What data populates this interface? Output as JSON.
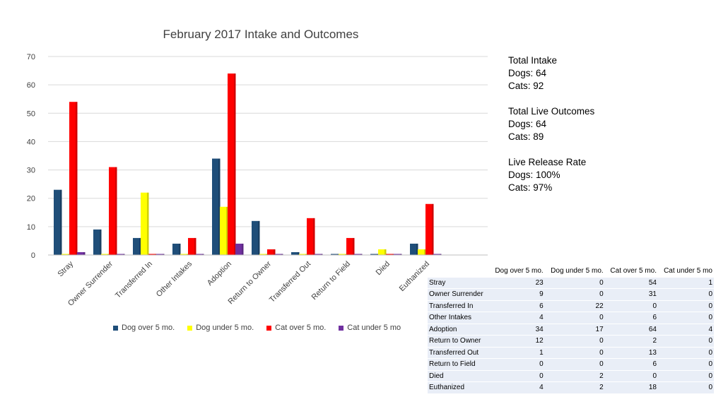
{
  "chart_data": {
    "type": "bar",
    "title": "February 2017 Intake and Outcomes",
    "categories": [
      "Stray",
      "Owner Surrender",
      "Transferred In",
      "Other Intakes",
      "Adoption",
      "Return to Owner",
      "Transferred Out",
      "Return to Field",
      "Died",
      "Euthanized"
    ],
    "series": [
      {
        "name": "Dog over 5 mo.",
        "color": "#1f4e79",
        "values": [
          23,
          9,
          6,
          4,
          34,
          12,
          1,
          0,
          0,
          4
        ]
      },
      {
        "name": "Dog under 5 mo.",
        "color": "#ffff00",
        "values": [
          0,
          0,
          22,
          0,
          17,
          0,
          0,
          0,
          2,
          2
        ]
      },
      {
        "name": "Cat over 5 mo.",
        "color": "#ff0000",
        "values": [
          54,
          31,
          0,
          6,
          64,
          2,
          13,
          6,
          0,
          18
        ]
      },
      {
        "name": "Cat under 5 mo",
        "color": "#7030a0",
        "values": [
          1,
          0,
          0,
          0,
          4,
          0,
          0,
          0,
          0,
          0
        ]
      }
    ],
    "ylim": [
      0,
      70
    ],
    "yticks": [
      0,
      10,
      20,
      30,
      40,
      50,
      60,
      70
    ],
    "grid": true,
    "legend": "bottom"
  },
  "stats": [
    {
      "heading": "Total Intake",
      "lines": [
        "Dogs: 64",
        "Cats: 92"
      ]
    },
    {
      "heading": "Total Live Outcomes",
      "lines": [
        "Dogs: 64",
        "Cats: 89"
      ]
    },
    {
      "heading": "Live Release Rate",
      "lines": [
        "Dogs: 100%",
        "Cats: 97%"
      ]
    }
  ],
  "table": {
    "headers": [
      "",
      "Dog over 5 mo.",
      "Dog under 5 mo.",
      "Cat over 5 mo.",
      "Cat under 5 mo"
    ],
    "rows": [
      [
        "Stray",
        "23",
        "0",
        "54",
        "1"
      ],
      [
        "Owner Surrender",
        "9",
        "0",
        "31",
        "0"
      ],
      [
        "Transferred In",
        "6",
        "22",
        "0",
        "0"
      ],
      [
        "Other Intakes",
        "4",
        "0",
        "6",
        "0"
      ],
      [
        "Adoption",
        "34",
        "17",
        "64",
        "4"
      ],
      [
        "Return to Owner",
        "12",
        "0",
        "2",
        "0"
      ],
      [
        "Transferred Out",
        "1",
        "0",
        "13",
        "0"
      ],
      [
        "Return to Field",
        "0",
        "0",
        "6",
        "0"
      ],
      [
        "Died",
        "0",
        "2",
        "0",
        "0"
      ],
      [
        "Euthanized",
        "4",
        "2",
        "18",
        "0"
      ]
    ]
  }
}
